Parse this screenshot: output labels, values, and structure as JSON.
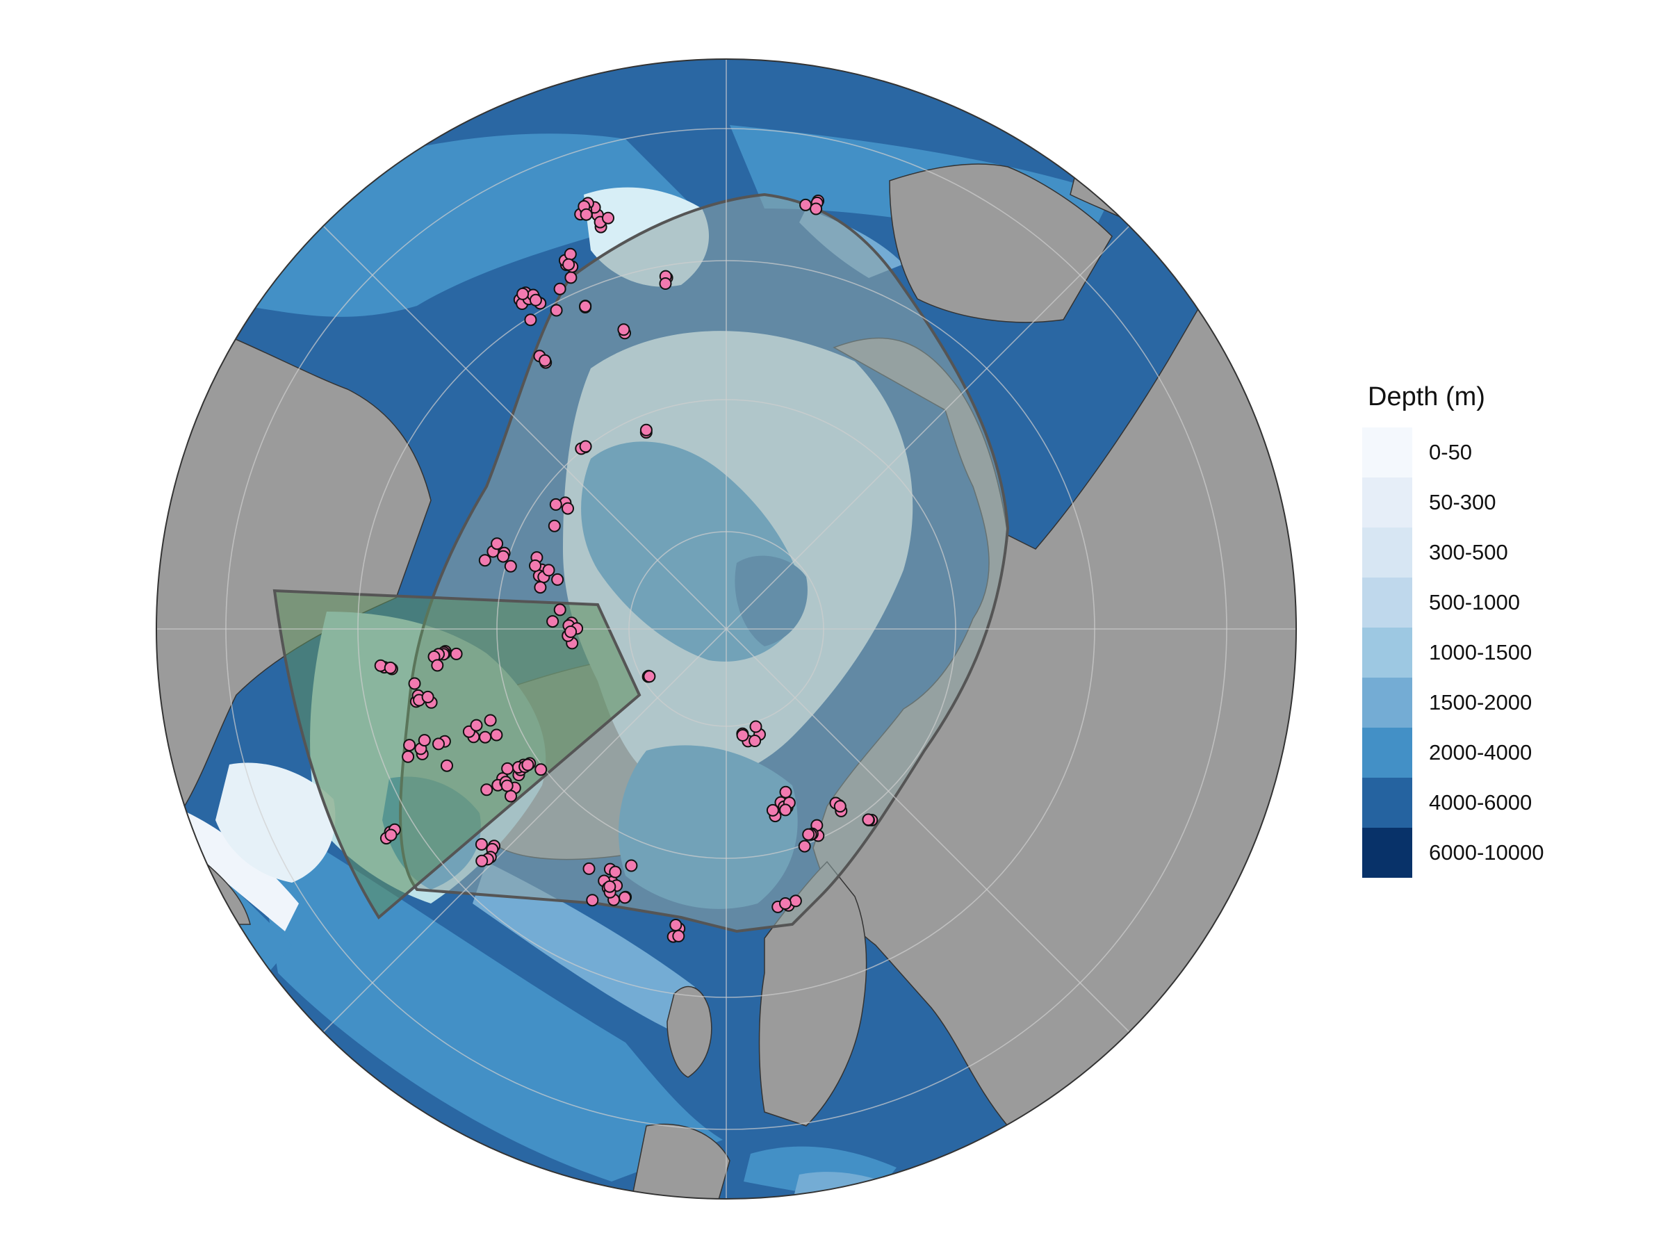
{
  "legend": {
    "title": "Depth (m)",
    "classes": [
      {
        "label": "0-50",
        "color": "#f4f8fd"
      },
      {
        "label": "50-300",
        "color": "#e6eef8"
      },
      {
        "label": "300-500",
        "color": "#d7e6f3"
      },
      {
        "label": "500-1000",
        "color": "#bfd8ec"
      },
      {
        "label": "1000-1500",
        "color": "#9dc8e2"
      },
      {
        "label": "1500-2000",
        "color": "#74acd4"
      },
      {
        "label": "2000-4000",
        "color": "#4390c6"
      },
      {
        "label": "4000-6000",
        "color": "#2563a0"
      },
      {
        "label": "6000-10000",
        "color": "#083269"
      }
    ]
  },
  "colors": {
    "land": "#9b9b9b",
    "region_outline": "#555555",
    "region_fill": "#8fa5a5",
    "study_sector_fill": "#5f8f5f",
    "point_fill": "#f27ab0",
    "point_stroke": "#111111"
  },
  "map": {
    "projection": "north-polar-stereographic",
    "graticule": true
  }
}
